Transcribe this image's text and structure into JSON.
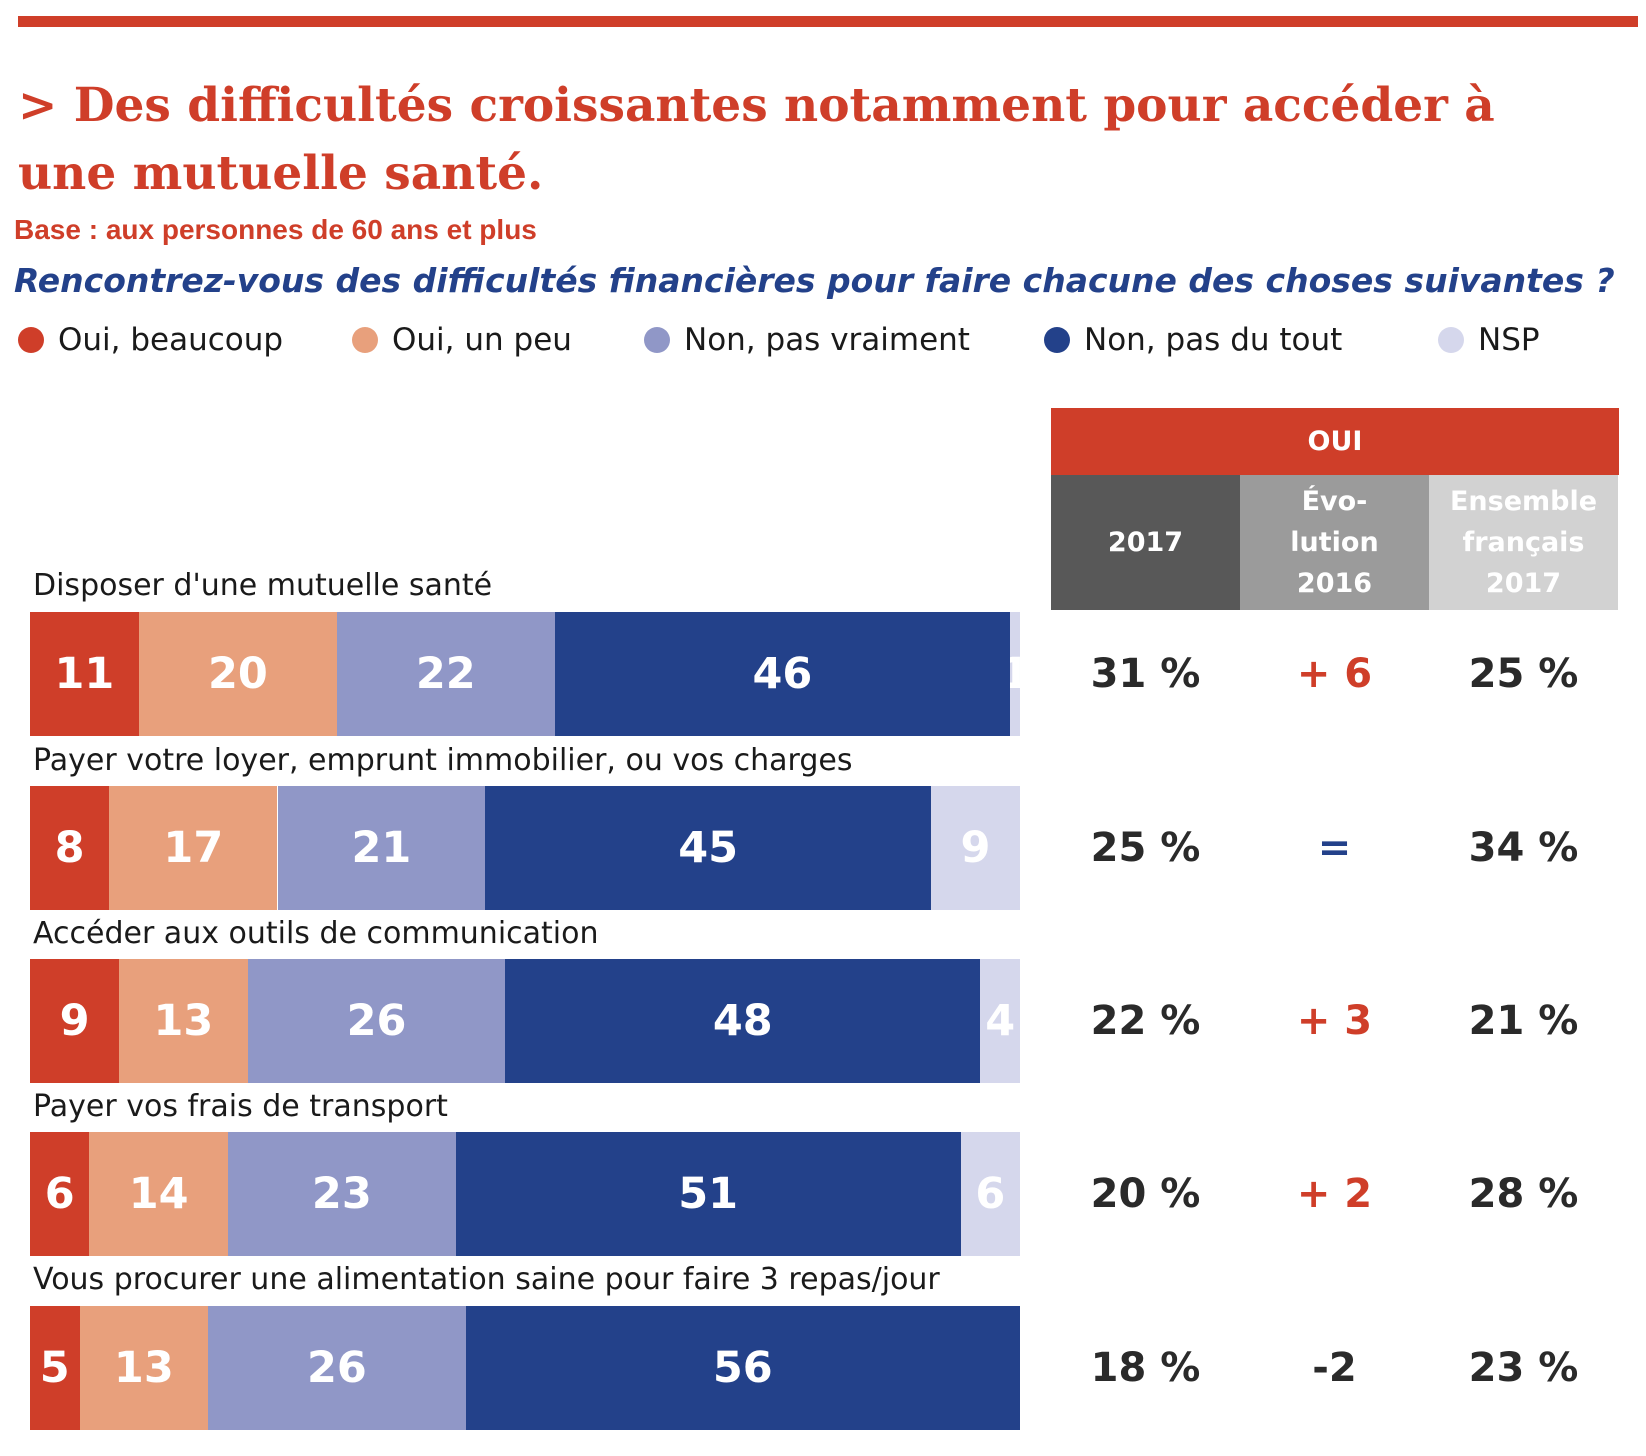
{
  "header": {
    "title": "> Des difficultés croissantes notamment pour accéder à une mutuelle santé.",
    "subtitle": "Base : aux personnes de 60 ans et plus",
    "question": "Rencontrez-vous des difficultés financières pour faire chacune des choses suivantes ?"
  },
  "colors": {
    "oui_beaucoup": "#cf3e29",
    "oui_un_peu": "#e8a07c",
    "non_pas_vraiment": "#9097c7",
    "non_pas_du_tout": "#23418a",
    "nsp": "#d5d7ec",
    "accent": "#cf3e29",
    "positive_change": "#cf3e29",
    "neutral_change": "#23418a",
    "negative_change": "#2a2a2a",
    "col_2017": "#585858",
    "col_evolution": "#9b9b9b",
    "col_ensemble": "#d2d2d2"
  },
  "table": {
    "group_header": "OUI",
    "columns": [
      "2017",
      "Évo-\nlution\n2016",
      "Ensemble\nfrançais\n2017"
    ]
  },
  "chart_data": {
    "type": "bar",
    "orientation": "horizontal",
    "stacked": true,
    "xlim": [
      0,
      100
    ],
    "legend_position": "top",
    "series": [
      {
        "name": "Oui, beaucoup",
        "color": "#cf3e29",
        "values": [
          11,
          8,
          9,
          6,
          5
        ]
      },
      {
        "name": "Oui, un peu",
        "color": "#e8a07c",
        "values": [
          20,
          17,
          13,
          14,
          13
        ]
      },
      {
        "name": "Non, pas vraiment",
        "color": "#9097c7",
        "values": [
          22,
          21,
          26,
          23,
          26
        ]
      },
      {
        "name": "Non, pas du tout",
        "color": "#23418a",
        "values": [
          46,
          45,
          48,
          51,
          56
        ]
      },
      {
        "name": "NSP",
        "color": "#d5d7ec",
        "values": [
          1,
          9,
          4,
          6,
          0
        ]
      }
    ],
    "categories": [
      "Disposer d'une mutuelle santé",
      "Payer votre loyer, emprunt immobilier, ou vos charges",
      "Accéder aux outils de communication",
      "Payer vos frais de transport",
      "Vous procurer une alimentation saine pour faire 3 repas/jour"
    ],
    "table_values": {
      "oui_2017": [
        "31 %",
        "25 %",
        "22 %",
        "20 %",
        "18 %"
      ],
      "evolution_2016": [
        "+ 6",
        "=",
        "+ 3",
        "+ 2",
        "-2"
      ],
      "ensemble_francais_2017": [
        "25 %",
        "34 %",
        "21 %",
        "28 %",
        "23 %"
      ]
    }
  }
}
